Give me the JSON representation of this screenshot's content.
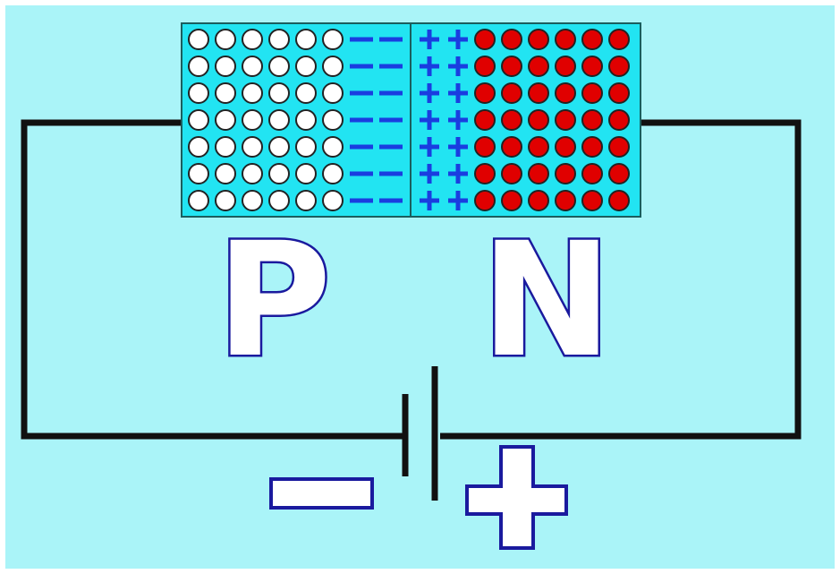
{
  "diagram": {
    "labels": {
      "p_region": "P",
      "n_region": "N"
    },
    "p_region": {
      "carriers": "holes",
      "carrier_color": "#ffffff",
      "depletion_charge": "negative",
      "columns": 6,
      "rows": 7
    },
    "n_region": {
      "carriers": "electrons",
      "carrier_color": "#e00000",
      "depletion_charge": "positive",
      "columns": 6,
      "rows": 7
    },
    "battery": {
      "left_terminal": "negative",
      "right_terminal": "positive"
    },
    "colors": {
      "background": "#aaf4f8",
      "junction_fill": "#22e4f2",
      "charge_marks": "#1a3de0",
      "letter_outline": "#1a1a9e",
      "wire": "#111111"
    }
  }
}
